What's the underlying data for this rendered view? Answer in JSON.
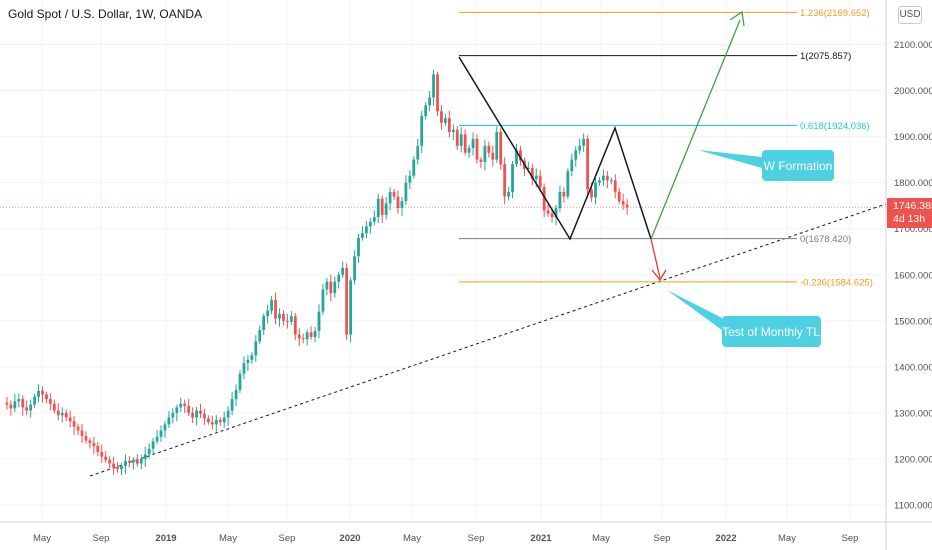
{
  "header": {
    "title": "Gold Spot / U.S. Dollar, 1W, OANDA",
    "currency": "USD"
  },
  "price_tag": {
    "price": "1746.385",
    "countdown": "4d 13h"
  },
  "callouts": [
    {
      "text": "W Formation"
    },
    {
      "text": "Test of Monthly TL"
    }
  ],
  "colors": {
    "up": "#26a69a",
    "down": "#ef5350",
    "fib_orange": "#f59c1a",
    "fib_teal": "#26c6da",
    "callout": "#4dd0e1",
    "arrow_up": "#43a047",
    "arrow_down": "#e53935"
  },
  "chart_data": {
    "type": "candlestick",
    "x_ticks": [
      "May",
      "Sep",
      "2019",
      "May",
      "Sep",
      "2020",
      "May",
      "Sep",
      "2021",
      "May",
      "Sep",
      "2022",
      "May",
      "Sep"
    ],
    "y_ticks": [
      1100,
      1200,
      1300,
      1400,
      1500,
      1600,
      1700,
      1800,
      1900,
      2000,
      2100
    ],
    "y_tick_labels": [
      "1100.000",
      "1200.000",
      "1300.000",
      "1400.000",
      "1500.000",
      "1600.000",
      "1700.000",
      "1800.000",
      "1900.000",
      "2000.000",
      "2100.000"
    ],
    "ylim": [
      1040,
      2205
    ],
    "last_price": 1746.385,
    "fib_levels": [
      {
        "label": "1.236(2169.652)",
        "value": 2169.652,
        "color": "#f59c1a"
      },
      {
        "label": "1(2075.857)",
        "value": 2075.857,
        "color": "#131722"
      },
      {
        "label": "0.618(1924.036)",
        "value": 1924.036,
        "color": "#26c6da"
      },
      {
        "label": "0(1678.420)",
        "value": 1678.42,
        "color": "#787b86"
      },
      {
        "label": "-0.236(1584.625)",
        "value": 1584.625,
        "color": "#f59c1a"
      }
    ],
    "price_path": [
      1322,
      1318,
      1310,
      1325,
      1330,
      1312,
      1305,
      1318,
      1335,
      1348,
      1340,
      1330,
      1320,
      1305,
      1295,
      1300,
      1290,
      1282,
      1270,
      1262,
      1250,
      1240,
      1235,
      1228,
      1215,
      1205,
      1198,
      1190,
      1182,
      1178,
      1185,
      1196,
      1192,
      1198,
      1190,
      1200,
      1210,
      1222,
      1238,
      1248,
      1262,
      1275,
      1290,
      1300,
      1312,
      1320,
      1315,
      1300,
      1290,
      1305,
      1298,
      1288,
      1280,
      1275,
      1285,
      1280,
      1290,
      1305,
      1330,
      1350,
      1385,
      1408,
      1415,
      1425,
      1455,
      1480,
      1510,
      1522,
      1545,
      1505,
      1515,
      1500,
      1498,
      1510,
      1470,
      1462,
      1460,
      1475,
      1465,
      1478,
      1520,
      1568,
      1585,
      1560,
      1585,
      1600,
      1615,
      1470,
      1588,
      1640,
      1680,
      1690,
      1705,
      1715,
      1725,
      1765,
      1730,
      1755,
      1780,
      1770,
      1745,
      1760,
      1800,
      1815,
      1850,
      1880,
      1945,
      1968,
      1985,
      2035,
      1955,
      1930,
      1940,
      1910,
      1915,
      1880,
      1905,
      1865,
      1875,
      1895,
      1850,
      1845,
      1880,
      1865,
      1850,
      1910,
      1840,
      1770,
      1780,
      1840,
      1870,
      1848,
      1830,
      1832,
      1808,
      1815,
      1790,
      1740,
      1733,
      1725,
      1745,
      1780,
      1770,
      1825,
      1850,
      1870,
      1880,
      1895,
      1785,
      1768,
      1800,
      1805,
      1815,
      1805,
      1805,
      1780,
      1760,
      1752,
      1746
    ]
  }
}
